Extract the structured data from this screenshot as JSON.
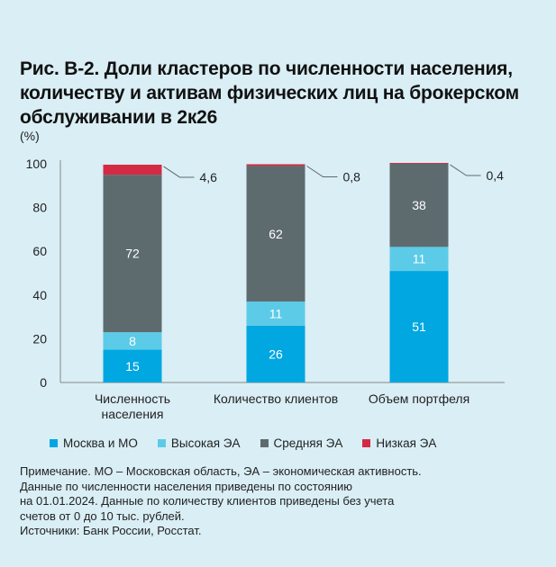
{
  "title": "Рис. В-2. Доли кластеров по численности населения, количеству и активам физических лиц на брокерском обслуживании в 2к26",
  "unit": "(%)",
  "colors": {
    "moscow": "#00a7e1",
    "high": "#5ccbe8",
    "mid": "#5d6b6f",
    "low": "#d42b44",
    "axis": "#888888",
    "text": "#222222"
  },
  "legend": [
    {
      "name": "Москва и МО",
      "color": "#00a7e1"
    },
    {
      "name": "Высокая ЭА",
      "color": "#5ccbe8"
    },
    {
      "name": "Средняя ЭА",
      "color": "#5d6b6f"
    },
    {
      "name": "Низкая ЭА",
      "color": "#d42b44"
    }
  ],
  "chart_data": {
    "type": "bar",
    "stacked": true,
    "title": "Рис. В-2. Доли кластеров по численности населения, количеству и активам физических лиц на брокерском обслуживании в 2к26",
    "ylabel": "(%)",
    "ylim": [
      0,
      100
    ],
    "yticks": [
      "0",
      "20",
      "40",
      "60",
      "80",
      "100"
    ],
    "categories": [
      [
        "Численность",
        "населения"
      ],
      [
        "Количество клиентов"
      ],
      [
        "Объем портфеля"
      ]
    ],
    "series": [
      {
        "name": "Москва и МО",
        "values": [
          15,
          26,
          51
        ],
        "labels": [
          "15",
          "26",
          "51"
        ]
      },
      {
        "name": "Высокая ЭА",
        "values": [
          8,
          11,
          11
        ],
        "labels": [
          "8",
          "11",
          "11"
        ]
      },
      {
        "name": "Средняя ЭА",
        "values": [
          72,
          62,
          38
        ],
        "labels": [
          "72",
          "62",
          "38"
        ]
      },
      {
        "name": "Низкая ЭА",
        "values": [
          4.6,
          0.8,
          0.4
        ],
        "labels": [
          "4,6",
          "0,8",
          "0,4"
        ]
      }
    ],
    "grid": false,
    "legend_position": "bottom"
  },
  "note": [
    "Примечание. МО – Московская область, ЭА – экономическая активность.",
    "Данные по численности населения приведены по состоянию",
    "на 01.01.2024. Данные по количеству клиентов приведены без учета",
    "счетов от 0 до 10 тыс. рублей.",
    "Источники: Банк России, Росстат."
  ]
}
